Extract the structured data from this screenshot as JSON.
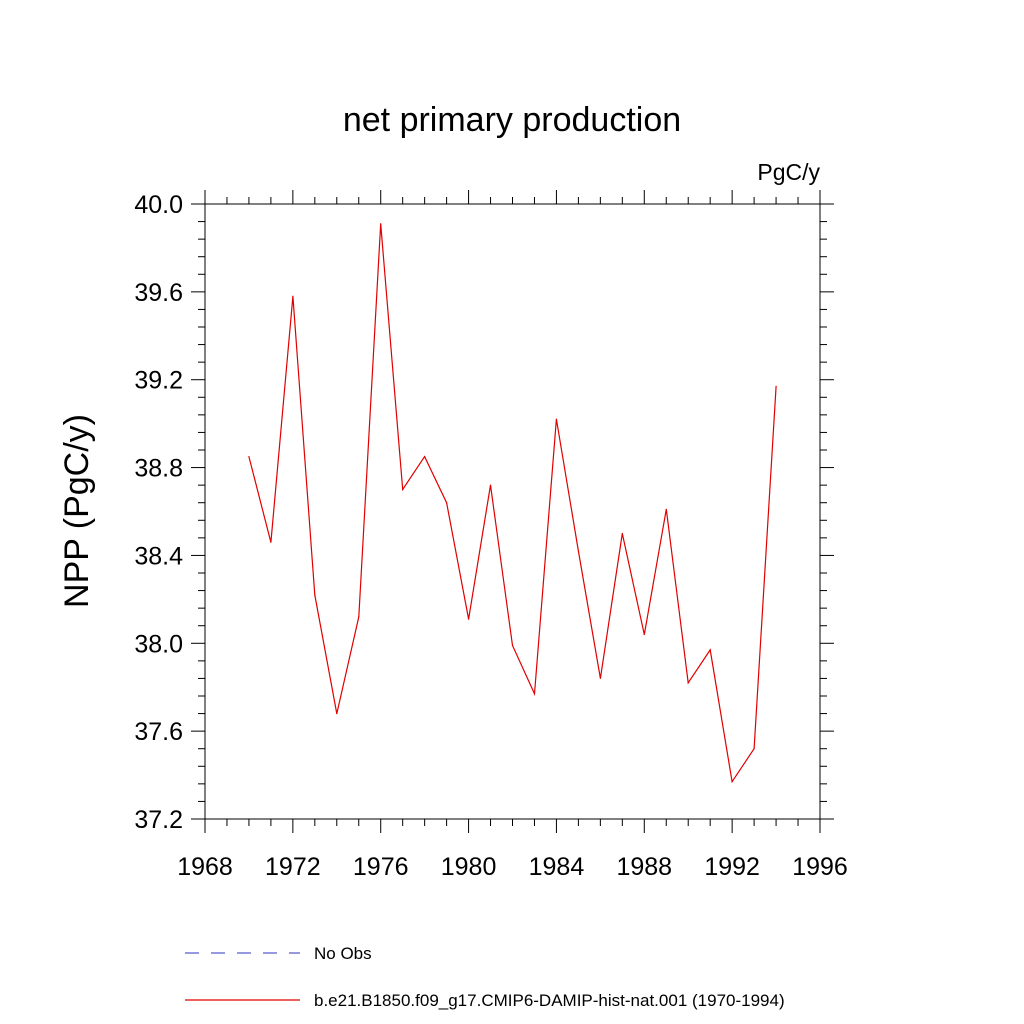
{
  "chart_data": {
    "type": "line",
    "title": "net primary production",
    "units_label": "PgC/y",
    "xlabel": "",
    "ylabel": "NPP  (PgC/y)",
    "xlim": [
      1968,
      1996
    ],
    "ylim": [
      37.2,
      40.0
    ],
    "x_ticks": [
      1968,
      1972,
      1976,
      1980,
      1984,
      1988,
      1992,
      1996
    ],
    "x_tick_labels": [
      "1968",
      "1972",
      "1976",
      "1980",
      "1984",
      "1988",
      "1992",
      "1996"
    ],
    "y_ticks": [
      37.2,
      37.6,
      38.0,
      38.4,
      38.8,
      39.2,
      39.6,
      40.0
    ],
    "y_tick_labels": [
      "37.2",
      "37.6",
      "38.0",
      "38.4",
      "38.8",
      "39.2",
      "39.6",
      "40.0"
    ],
    "grid": false,
    "legend_position": "bottom",
    "series": [
      {
        "name": "No Obs",
        "color": "#5a5acc",
        "line_style": "dashed",
        "x": [],
        "y": []
      },
      {
        "name": "b.e21.B1850.f09_g17.CMIP6-DAMIP-hist-nat.001 (1970-1994)",
        "color": "#e00000",
        "line_style": "solid",
        "x": [
          1970,
          1971,
          1972,
          1973,
          1974,
          1975,
          1976,
          1977,
          1978,
          1979,
          1980,
          1981,
          1982,
          1983,
          1984,
          1985,
          1986,
          1987,
          1988,
          1989,
          1990,
          1991,
          1992,
          1993,
          1994
        ],
        "y": [
          38.85,
          38.46,
          39.58,
          38.22,
          37.68,
          38.12,
          39.91,
          38.7,
          38.85,
          38.64,
          38.11,
          38.72,
          37.99,
          37.77,
          39.02,
          38.42,
          37.84,
          38.5,
          38.04,
          38.61,
          37.82,
          37.97,
          37.37,
          37.52,
          39.17
        ]
      }
    ]
  }
}
